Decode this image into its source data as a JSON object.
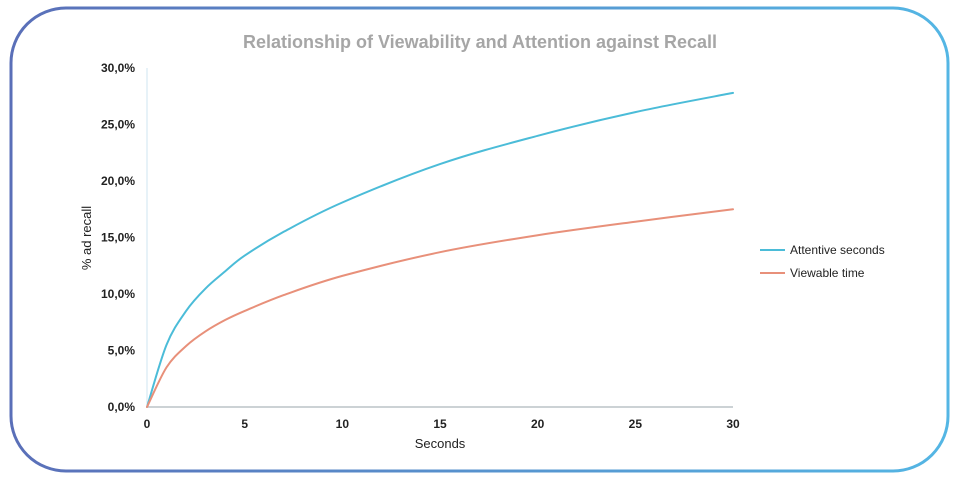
{
  "chart_data": {
    "type": "line",
    "title": "Relationship of Viewability and Attention against Recall",
    "xlabel": "Seconds",
    "ylabel": "% ad recall",
    "xlim": [
      0,
      30
    ],
    "ylim": [
      0,
      0.3
    ],
    "x_ticks": [
      "0",
      "5",
      "10",
      "15",
      "20",
      "25",
      "30"
    ],
    "y_ticks": [
      "0,0%",
      "5,0%",
      "10,0%",
      "15,0%",
      "20,0%",
      "25,0%",
      "30,0%"
    ],
    "legend_position": "right",
    "x": [
      0,
      1,
      2,
      3,
      4,
      5,
      7,
      10,
      15,
      20,
      25,
      30
    ],
    "series": [
      {
        "name": "Attentive seconds",
        "color": "#4bbcd8",
        "values": [
          0,
          0.055,
          0.085,
          0.105,
          0.12,
          0.134,
          0.155,
          0.181,
          0.215,
          0.24,
          0.261,
          0.278
        ]
      },
      {
        "name": "Viewable time",
        "color": "#e8907a",
        "values": [
          0,
          0.035,
          0.054,
          0.067,
          0.077,
          0.085,
          0.099,
          0.116,
          0.137,
          0.152,
          0.164,
          0.175
        ]
      }
    ]
  }
}
